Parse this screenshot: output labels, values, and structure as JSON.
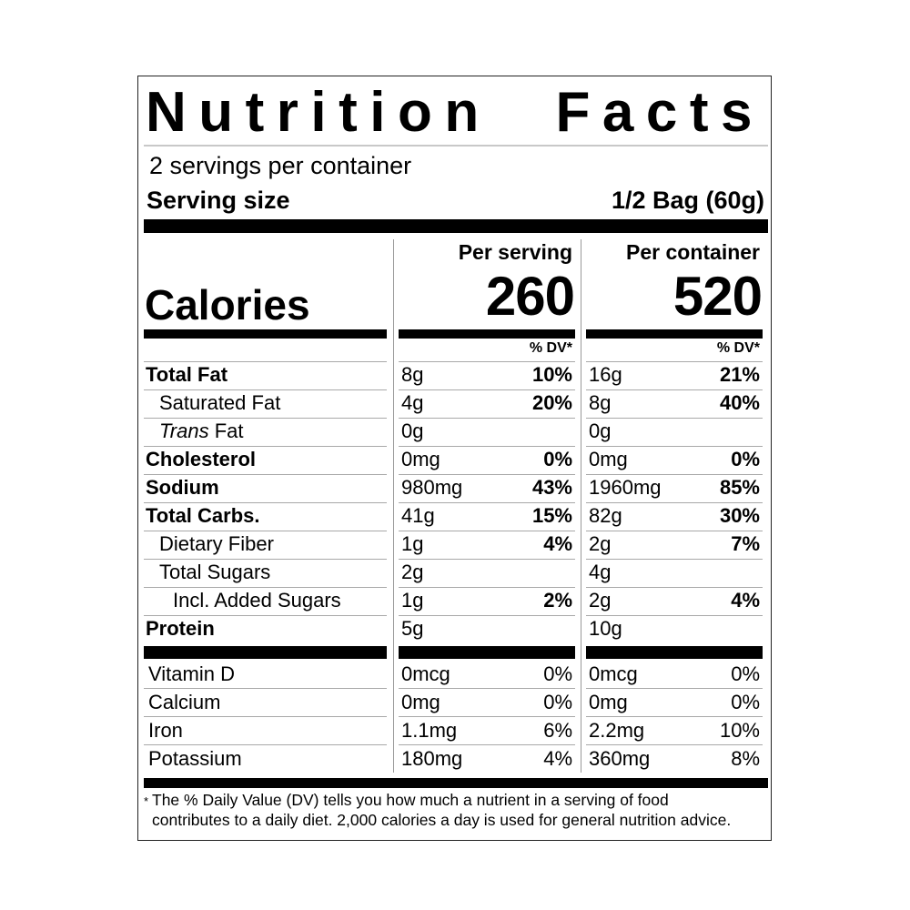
{
  "title": "Nutrition Facts",
  "servings_per_container": "2 servings per container",
  "serving_size": {
    "label": "Serving size",
    "value": "1/2 Bag (60g)"
  },
  "columns": {
    "per_serving": "Per serving",
    "per_container": "Per container"
  },
  "calories": {
    "label": "Calories",
    "per_serving": "260",
    "per_container": "520"
  },
  "dv_header": "% DV*",
  "nutrients": [
    {
      "name": "Total Fat",
      "bold": true,
      "indent": 0,
      "serving_amount": "8g",
      "serving_dv": "10%",
      "container_amount": "16g",
      "container_dv": "21%"
    },
    {
      "name": "Saturated Fat",
      "bold": false,
      "indent": 1,
      "serving_amount": "4g",
      "serving_dv": "20%",
      "container_amount": "8g",
      "container_dv": "40%"
    },
    {
      "name_italic": "Trans",
      "name": " Fat",
      "bold": false,
      "indent": 1,
      "serving_amount": "0g",
      "serving_dv": "",
      "container_amount": "0g",
      "container_dv": ""
    },
    {
      "name": "Cholesterol",
      "bold": true,
      "indent": 0,
      "serving_amount": "0mg",
      "serving_dv": "0%",
      "container_amount": "0mg",
      "container_dv": "0%"
    },
    {
      "name": "Sodium",
      "bold": true,
      "indent": 0,
      "serving_amount": "980mg",
      "serving_dv": "43%",
      "container_amount": "1960mg",
      "container_dv": "85%"
    },
    {
      "name": "Total Carbs.",
      "bold": true,
      "indent": 0,
      "serving_amount": "41g",
      "serving_dv": "15%",
      "container_amount": "82g",
      "container_dv": "30%"
    },
    {
      "name": "Dietary Fiber",
      "bold": false,
      "indent": 1,
      "serving_amount": "1g",
      "serving_dv": "4%",
      "container_amount": "2g",
      "container_dv": "7%"
    },
    {
      "name": "Total Sugars",
      "bold": false,
      "indent": 1,
      "serving_amount": "2g",
      "serving_dv": "",
      "container_amount": "4g",
      "container_dv": ""
    },
    {
      "name": "Incl. Added Sugars",
      "bold": false,
      "indent": 2,
      "serving_amount": "1g",
      "serving_dv": "2%",
      "container_amount": "2g",
      "container_dv": "4%"
    },
    {
      "name": "Protein",
      "bold": true,
      "indent": 0,
      "serving_amount": "5g",
      "serving_dv": "",
      "container_amount": "10g",
      "container_dv": ""
    }
  ],
  "vitamins": [
    {
      "name": "Vitamin D",
      "serving_amount": "0mcg",
      "serving_dv": "0%",
      "container_amount": "0mcg",
      "container_dv": "0%"
    },
    {
      "name": "Calcium",
      "serving_amount": "0mg",
      "serving_dv": "0%",
      "container_amount": "0mg",
      "container_dv": "0%"
    },
    {
      "name": "Iron",
      "serving_amount": "1.1mg",
      "serving_dv": "6%",
      "container_amount": "2.2mg",
      "container_dv": "10%"
    },
    {
      "name": "Potassium",
      "serving_amount": "180mg",
      "serving_dv": "4%",
      "container_amount": "360mg",
      "container_dv": "8%"
    }
  ],
  "footnote": {
    "asterisk": "*",
    "line1": "The % Daily Value (DV) tells you how much a nutrient in a serving of food",
    "line2": "contributes to a daily diet. 2,000 calories a day is used for general nutrition advice."
  }
}
